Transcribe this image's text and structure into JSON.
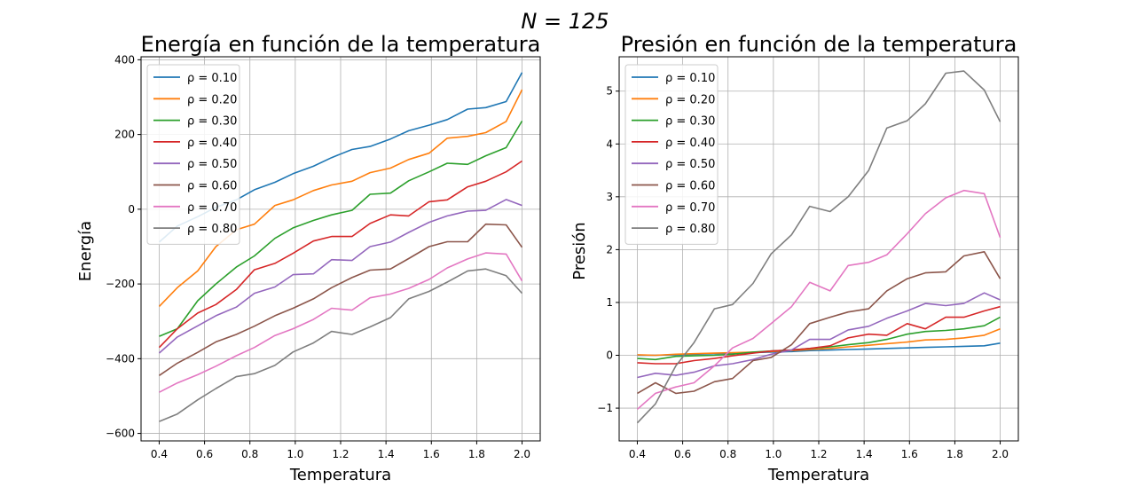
{
  "suptitle": "N = 125",
  "chart_data": [
    {
      "type": "line",
      "title": "Energía en función de la temperatura",
      "xlabel": "Temperatura",
      "ylabel": "Energía",
      "xlim": [
        0.32,
        2.08
      ],
      "ylim": [
        -620,
        408
      ],
      "xticks": [
        0.4,
        0.6,
        0.8,
        1.0,
        1.2,
        1.4,
        1.6,
        1.8,
        2.0
      ],
      "xtick_labels": [
        "0.4",
        "0.6",
        "0.8",
        "1.0",
        "1.2",
        "1.4",
        "1.6",
        "1.8",
        "2.0"
      ],
      "yticks": [
        -600,
        -400,
        -200,
        0,
        200,
        400
      ],
      "ytick_labels": [
        "−600",
        "−400",
        "−200",
        "0",
        "200",
        "400"
      ],
      "grid": true,
      "legend_position": "top-left",
      "x": [
        0.4,
        0.48,
        0.57,
        0.65,
        0.74,
        0.82,
        0.91,
        0.99,
        1.08,
        1.16,
        1.25,
        1.33,
        1.42,
        1.5,
        1.59,
        1.67,
        1.76,
        1.84,
        1.93,
        2.0
      ],
      "series": [
        {
          "name": "ρ = 0.10",
          "color": "#1f77b4",
          "values": [
            -88,
            -45,
            -20,
            5,
            25,
            52,
            72,
            95,
            115,
            138,
            160,
            168,
            188,
            210,
            225,
            240,
            268,
            272,
            288,
            366
          ]
        },
        {
          "name": "ρ = 0.20",
          "color": "#ff7f0e",
          "values": [
            -260,
            -210,
            -165,
            -100,
            -55,
            -40,
            10,
            25,
            50,
            65,
            75,
            98,
            110,
            133,
            150,
            190,
            195,
            205,
            235,
            320
          ]
        },
        {
          "name": "ρ = 0.30",
          "color": "#2ca02c",
          "values": [
            -340,
            -320,
            -245,
            -200,
            -155,
            -125,
            -78,
            -50,
            -30,
            -15,
            -3,
            40,
            43,
            76,
            100,
            123,
            120,
            143,
            165,
            236
          ]
        },
        {
          "name": "ρ = 0.40",
          "color": "#d62728",
          "values": [
            -370,
            -320,
            -278,
            -255,
            -215,
            -162,
            -145,
            -118,
            -85,
            -73,
            -73,
            -38,
            -15,
            -18,
            20,
            25,
            60,
            75,
            100,
            129
          ]
        },
        {
          "name": "ρ = 0.50",
          "color": "#9467bd",
          "values": [
            -385,
            -342,
            -312,
            -285,
            -262,
            -225,
            -208,
            -175,
            -173,
            -135,
            -137,
            -100,
            -88,
            -62,
            -35,
            -18,
            -5,
            -3,
            26,
            10
          ]
        },
        {
          "name": "ρ = 0.60",
          "color": "#8c564b",
          "values": [
            -445,
            -412,
            -383,
            -355,
            -335,
            -313,
            -285,
            -265,
            -240,
            -210,
            -183,
            -163,
            -160,
            -132,
            -100,
            -87,
            -87,
            -40,
            -42,
            -102
          ]
        },
        {
          "name": "ρ = 0.70",
          "color": "#e377c2",
          "values": [
            -490,
            -465,
            -443,
            -420,
            -392,
            -370,
            -338,
            -320,
            -295,
            -265,
            -270,
            -237,
            -227,
            -212,
            -188,
            -157,
            -133,
            -117,
            -120,
            -192
          ]
        },
        {
          "name": "ρ = 0.80",
          "color": "#7f7f7f",
          "values": [
            -568,
            -548,
            -510,
            -480,
            -448,
            -440,
            -418,
            -382,
            -358,
            -327,
            -335,
            -315,
            -290,
            -240,
            -220,
            -195,
            -165,
            -160,
            -178,
            -225
          ]
        }
      ]
    },
    {
      "type": "line",
      "title": "Presión en función de la temperatura",
      "xlabel": "Temperatura",
      "ylabel": "Presión",
      "xlim": [
        0.32,
        2.08
      ],
      "ylim": [
        -1.62,
        5.65
      ],
      "xticks": [
        0.4,
        0.6,
        0.8,
        1.0,
        1.2,
        1.4,
        1.6,
        1.8,
        2.0
      ],
      "xtick_labels": [
        "0.4",
        "0.6",
        "0.8",
        "1.0",
        "1.2",
        "1.4",
        "1.6",
        "1.8",
        "2.0"
      ],
      "yticks": [
        -1,
        0,
        1,
        2,
        3,
        4,
        5
      ],
      "ytick_labels": [
        "−1",
        "0",
        "1",
        "2",
        "3",
        "4",
        "5"
      ],
      "grid": true,
      "legend_position": "top-left",
      "x": [
        0.4,
        0.48,
        0.57,
        0.65,
        0.74,
        0.82,
        0.91,
        0.99,
        1.08,
        1.16,
        1.25,
        1.33,
        1.42,
        1.5,
        1.59,
        1.67,
        1.76,
        1.84,
        1.93,
        2.0
      ],
      "series": [
        {
          "name": "ρ = 0.10",
          "color": "#1f77b4",
          "values": [
            0.0,
            0.0,
            0.01,
            0.02,
            0.03,
            0.04,
            0.05,
            0.06,
            0.07,
            0.09,
            0.1,
            0.11,
            0.12,
            0.13,
            0.14,
            0.15,
            0.16,
            0.17,
            0.18,
            0.23
          ]
        },
        {
          "name": "ρ = 0.20",
          "color": "#ff7f0e",
          "values": [
            0.01,
            0.0,
            0.02,
            0.03,
            0.04,
            0.05,
            0.06,
            0.07,
            0.09,
            0.11,
            0.13,
            0.16,
            0.19,
            0.22,
            0.25,
            0.29,
            0.3,
            0.33,
            0.38,
            0.5
          ]
        },
        {
          "name": "ρ = 0.30",
          "color": "#2ca02c",
          "values": [
            -0.06,
            -0.08,
            -0.02,
            -0.01,
            0.0,
            0.02,
            0.06,
            0.08,
            0.1,
            0.13,
            0.16,
            0.2,
            0.24,
            0.3,
            0.4,
            0.45,
            0.47,
            0.5,
            0.56,
            0.72
          ]
        },
        {
          "name": "ρ = 0.40",
          "color": "#d62728",
          "values": [
            -0.14,
            -0.16,
            -0.16,
            -0.1,
            -0.06,
            -0.01,
            0.04,
            0.08,
            0.1,
            0.13,
            0.18,
            0.33,
            0.4,
            0.38,
            0.6,
            0.5,
            0.72,
            0.72,
            0.84,
            0.92
          ]
        },
        {
          "name": "ρ = 0.50",
          "color": "#9467bd",
          "values": [
            -0.42,
            -0.34,
            -0.38,
            -0.32,
            -0.2,
            -0.16,
            -0.08,
            0.02,
            0.1,
            0.3,
            0.3,
            0.48,
            0.55,
            0.7,
            0.84,
            0.98,
            0.94,
            0.98,
            1.18,
            1.05
          ]
        },
        {
          "name": "ρ = 0.60",
          "color": "#8c564b",
          "values": [
            -0.72,
            -0.52,
            -0.72,
            -0.68,
            -0.5,
            -0.44,
            -0.1,
            -0.04,
            0.2,
            0.6,
            0.72,
            0.82,
            0.88,
            1.22,
            1.45,
            1.56,
            1.58,
            1.88,
            1.96,
            1.45
          ]
        },
        {
          "name": "ρ = 0.70",
          "color": "#e377c2",
          "values": [
            -1.02,
            -0.72,
            -0.6,
            -0.52,
            -0.2,
            0.14,
            0.32,
            0.6,
            0.92,
            1.38,
            1.22,
            1.7,
            1.76,
            1.9,
            2.3,
            2.68,
            2.98,
            3.12,
            3.06,
            2.23
          ]
        },
        {
          "name": "ρ = 0.80",
          "color": "#7f7f7f",
          "values": [
            -1.28,
            -0.92,
            -0.2,
            0.24,
            0.88,
            0.96,
            1.36,
            1.92,
            2.28,
            2.82,
            2.72,
            3.0,
            3.5,
            4.3,
            4.44,
            4.76,
            5.34,
            5.38,
            5.02,
            4.42
          ]
        }
      ]
    }
  ]
}
